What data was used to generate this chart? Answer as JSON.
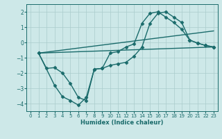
{
  "xlabel": "Humidex (Indice chaleur)",
  "xlim": [
    -0.5,
    23.5
  ],
  "ylim": [
    -4.5,
    2.5
  ],
  "xticks": [
    0,
    1,
    2,
    3,
    4,
    5,
    6,
    7,
    8,
    9,
    10,
    11,
    12,
    13,
    14,
    15,
    16,
    17,
    18,
    19,
    20,
    21,
    22,
    23
  ],
  "yticks": [
    -4,
    -3,
    -2,
    -1,
    0,
    1,
    2
  ],
  "bg_color": "#cde8e8",
  "grid_color": "#aacccc",
  "line_color": "#1a6b6b",
  "lines": [
    {
      "x": [
        1,
        2,
        3,
        4,
        5,
        6,
        7,
        8,
        9,
        10,
        11,
        12,
        13,
        14,
        15,
        16,
        17,
        18,
        19,
        20,
        21,
        22,
        23
      ],
      "y": [
        -0.7,
        -1.7,
        -1.65,
        -2.0,
        -2.7,
        -3.6,
        -3.8,
        -1.75,
        -1.7,
        -0.7,
        -0.6,
        -0.3,
        -0.1,
        1.25,
        1.9,
        2.0,
        1.65,
        1.3,
        0.85,
        0.15,
        -0.05,
        -0.2,
        -0.3
      ],
      "marker": "D",
      "ms": 2.5,
      "lw": 1.0
    },
    {
      "x": [
        1,
        3,
        4,
        5,
        6,
        7,
        8,
        9,
        10,
        11,
        12,
        13,
        14,
        15,
        16,
        17,
        18,
        19,
        20,
        21,
        22,
        23
      ],
      "y": [
        -0.7,
        -2.8,
        -3.55,
        -3.8,
        -4.1,
        -3.6,
        -1.75,
        -1.7,
        -1.5,
        -1.4,
        -1.3,
        -0.9,
        -0.3,
        1.25,
        1.9,
        2.0,
        1.65,
        1.3,
        0.15,
        -0.05,
        -0.2,
        -0.3
      ],
      "marker": "D",
      "ms": 2.5,
      "lw": 1.0
    },
    {
      "x": [
        1,
        23
      ],
      "y": [
        -0.7,
        0.75
      ],
      "marker": null,
      "ms": 0,
      "lw": 1.0
    },
    {
      "x": [
        1,
        23
      ],
      "y": [
        -0.7,
        -0.3
      ],
      "marker": null,
      "ms": 0,
      "lw": 1.0
    }
  ]
}
